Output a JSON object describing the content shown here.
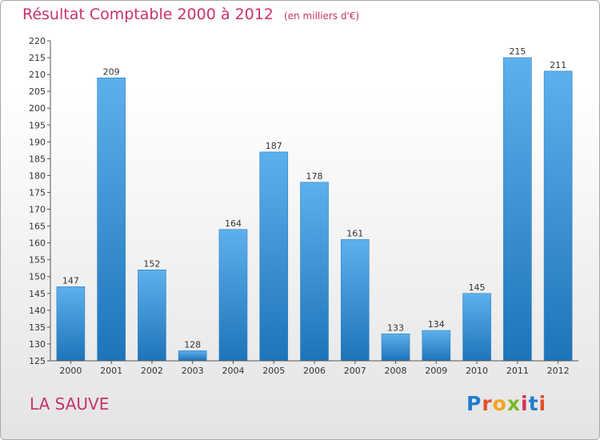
{
  "chart_data": {
    "type": "bar",
    "title": "Résultat Comptable 2000 à 2012",
    "unit": "(en milliers d'€)",
    "categories": [
      "2000",
      "2001",
      "2002",
      "2003",
      "2004",
      "2005",
      "2006",
      "2007",
      "2008",
      "2009",
      "2010",
      "2011",
      "2012"
    ],
    "values": [
      147,
      209,
      152,
      128,
      164,
      187,
      178,
      161,
      133,
      134,
      145,
      215,
      211
    ],
    "value_labels": [
      "147",
      "209",
      "152",
      "128",
      "164",
      "187",
      "178",
      "161",
      "133",
      "134",
      "145",
      "215",
      "211"
    ],
    "ylim": [
      125,
      220
    ],
    "yticks": [
      125,
      130,
      135,
      140,
      145,
      150,
      155,
      160,
      165,
      170,
      175,
      180,
      185,
      190,
      195,
      200,
      205,
      210,
      215,
      220
    ],
    "ytick_labels": [
      "125",
      "130",
      "135",
      "140",
      "145",
      "150",
      "155",
      "160",
      "165",
      "170",
      "175",
      "180",
      "185",
      "190",
      "195",
      "200",
      "205",
      "210",
      "215",
      "220"
    ],
    "grid": false,
    "legend": "none",
    "bar_color": "#3d94dc"
  },
  "location": "LA SAUVE",
  "logo": {
    "letters": [
      "P",
      "r",
      "o",
      "x",
      "i",
      "t",
      "i"
    ],
    "colors": [
      "#1f7ccf",
      "#e0502a",
      "#f2a51d",
      "#7ab82a",
      "#d6325a",
      "#1f7ccf",
      "#e0502a"
    ]
  },
  "colors": {
    "title": "#c8326e",
    "axis": "#333333"
  }
}
